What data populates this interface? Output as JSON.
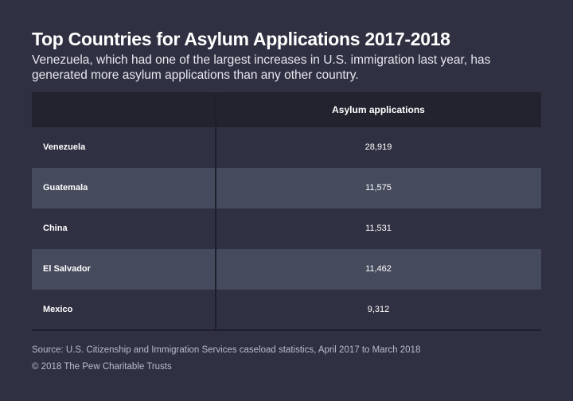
{
  "title": "Top Countries for Asylum Applications 2017-2018",
  "subtitle": "Venezuela, which had one of the largest increases in U.S. immigration last year, has generated more asylum applications than any other country.",
  "source": "Source: U.S. Citizenship and Immigration Services caseload statistics, April 2017 to March 2018",
  "copyright": "© 2018 The Pew Charitable Trusts",
  "colors": {
    "background": "#2f3142",
    "header_row": "#22232f",
    "stripe_row": "#454a5c",
    "text": "#ffffff",
    "muted_text": "#b9bccb"
  },
  "chart_data": {
    "type": "table",
    "columns": [
      "",
      "Asylum applications"
    ],
    "rows": [
      {
        "country": "Venezuela",
        "applications": 28919,
        "label": "28,919"
      },
      {
        "country": "Guatemala",
        "applications": 11575,
        "label": "11,575"
      },
      {
        "country": "China",
        "applications": 11531,
        "label": "11,531"
      },
      {
        "country": "El Salvador",
        "applications": 11462,
        "label": "11,462"
      },
      {
        "country": "Mexico",
        "applications": 9312,
        "label": "9,312"
      }
    ]
  }
}
